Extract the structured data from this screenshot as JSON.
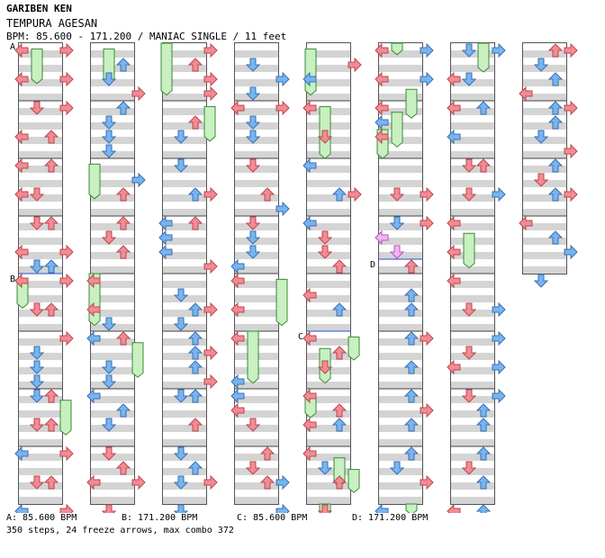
{
  "header": {
    "artist": "GARIBEN KEN",
    "title": "TEMPURA AGESAN",
    "info": "BPM: 85.600 - 171.200 / MANIAC SINGLE / 11 feet"
  },
  "section_markers": [
    {
      "label": "A",
      "column": 0,
      "measure": 0
    },
    {
      "label": "B",
      "column": 0,
      "measure": 4
    },
    {
      "label": "C",
      "column": 4,
      "measure": 5
    },
    {
      "label": "D",
      "column": 5,
      "measure": 3.75
    }
  ],
  "bpm_legend": [
    {
      "text": "A: 85.600 BPM"
    },
    {
      "text": "B: 171.200 BPM"
    },
    {
      "text": "C: 85.600 BPM"
    },
    {
      "text": "D: 171.200 BPM"
    }
  ],
  "footer": "350 steps, 24 freeze arrows, max combo 372",
  "colors": {
    "red_arrow": "#f08c94",
    "blue_arrow": "#78b4f0",
    "pink_arrow": "#f4b4f4",
    "freeze": "#c8f0c0",
    "stripe": "#d4d4d4",
    "measure_line": "#444444",
    "bpm_line": "#2255cc"
  },
  "chart": {
    "lane_directions": [
      "left",
      "down",
      "up",
      "right"
    ],
    "columns": [
      {
        "steps": "0:0r,0:3r|0.5:0r,0.5:3r|1:1r,1:3r|1.5:0r,1.5:2r|2:0r,2:2r|2.5:0r,2.5:1r|3:1r,3:2r|3.5:0r,3.5:3r|3.75:1b,3.75:2b|4:0r,4:3r|4.5:1r,4.5:2r|5:3r|5.25:1b,5.5:1b,5.75:1b|6:1b,6:2r|6.5:1r,6.5:2r|7:0b,7:3r|7.5:1r,7.5:2r|8:0b,8:3r",
        "freezes": "1:0.1:0.7|0:4.1:4.6|3:6.2:6.8"
      },
      {
        "steps": "0.25:2b,0.5:1b|0.75:3r|1:2b|1.25:1b,1.5:1b,1.75:1b|2.25:3b|2.5:2r|3:2r|3.25:1r|3.5:2r|4:0r|4.5:0r|4.75:1b|5:0b,5:2r|5.5:1b,5.75:1b|6:0b|6.25:2b|6.5:1b|7:1r|7.25:2r|7.5:0r,7.5:3r|8:1r",
        "freezes": "1:0.1:0.7|0:2.1:2.7|0:4:4.9|3:5.2:5.8"
      },
      {
        "steps": "0:3r|0.25:2r|0.5:3r|0.75:3r|1.25:2r|1.5:1b|2:1b|2.5:2b,2.5:3r|3:0b,3:2r|3.25:0b,3.5:0b|3.75:3r|4.25:1b|4.5:2b,4.5:3r|4.75:1b|5:2b|5.25:2b,5.25:3r|5.5:2b|5.75:3r|6:1b,6:2b|6.5:2r|7:1b|7.25:2b|7.5:1b,7.5:3r|8:1b",
        "freezes": "0:0:0.9|3:1.1:1.7"
      },
      {
        "steps": "0.25:1b|0.5:3b|0.75:1b|1:0r,1:3r|1.25:1b,1.5:1b|2:1r|2.5:2r|2.75:3b|3:1r|3.25:1b|3.5:1b|3.75:0b|4:0r|4.5:0r|5:0r|5.75:0b,6:0b|6.25:0r|6.5:1r|7:2r|7.25:1r|7.5:2r,7.5:3b|8:3b",
        "freezes": "1:5:5.9|3:4.1:4.9"
      },
      {
        "steps": "0.25:3r|0.5:0b|1:0r|1.5:1r|2:0b|2.5:2b,2.5:3r|3:0b|3.25:1r,3.5:1r|3.75:2r|4.25:0r|4.5:2b|5:0r|5.25:2r|5.5:1r|6:0r|6.25:2r|6.5:0r,6.5:2b|7:0r|7.25:1b|7.5:2r|8:1r",
        "freezes": "0:0.1:0.9|1:1.1:2|1:5.3:5.9|0:6.1:6.5|2:7.2:7.7|3:7.4:7.8|3:5.1:5.5|1:8:8.3"
      },
      {
        "steps": "0:0r,0:3b|0.5:0r,0.5:3b|1:0r|1.25:0b,1.5:0r|2.5:1r,2.5:3r|3:1b,3:3r|3.25:0p,3.5:1p|3.75:2r|4.25:2b|4.5:2b|5:2b,5:3r|5.5:2b|6:2b|6.25:3r|6.5:2b|7:2b|7.25:1b|7.5:3r|8:0b",
        "freezes": "1:0:0.2|2:0.8:1.3|1:1.2:1.8|0:1.5:2|2:8:8.4"
      },
      {
        "steps": "0:1b,0:3b|0.5:1b,0.5:0r|1:0r,1:2b|1.5:0b|2:1r,2:2r|2.5:1r,2.5:3b|3:0r|3.5:0r|4:0r|4.5:1r,4.5:3b|5:3b|5.25:1r|5.5:0r,5.5:3b|6:1r,6:3b|6.25:2b|6.5:2b|7:2b|7.25:1r|7.5:2b|8:0r|8:2b",
        "freezes": "2:0:0.5|1:3.3:3.9"
      },
      {
        "steps": "0:2r,0:3r|0.25:1b|0.5:2b|0.75:0r|1:2b,1:3r|1.25:2b|1.5:1b|1.75:3r|2:2b|2.25:1r|2.5:3r,2.5:2b|3:0r|3.25:2b|3.5:3b|4:1b",
        "freezes": ""
      }
    ]
  }
}
